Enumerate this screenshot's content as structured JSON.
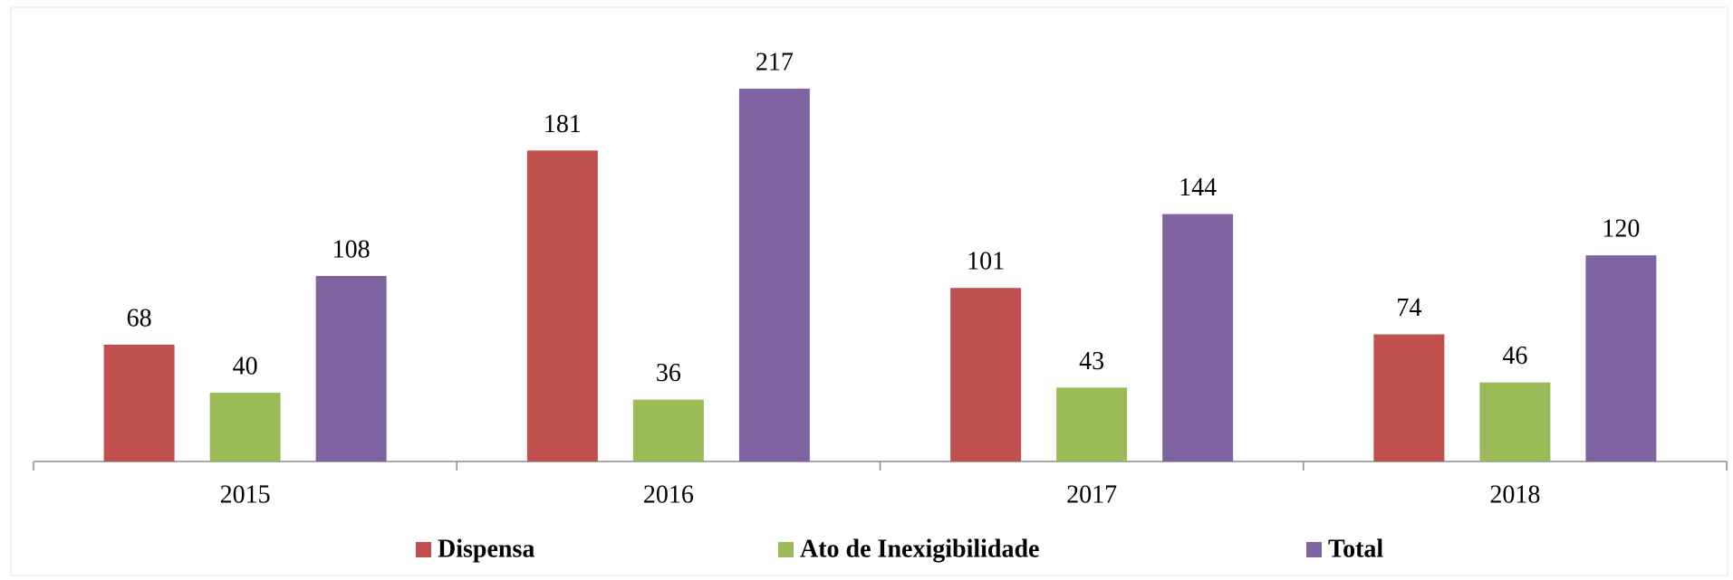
{
  "chart_data": {
    "type": "bar",
    "categories": [
      "2015",
      "2016",
      "2017",
      "2018"
    ],
    "series": [
      {
        "name": "Dispensa",
        "color": "#c0504d",
        "values": [
          68,
          181,
          101,
          74
        ]
      },
      {
        "name": "Ato de Inexigibilidade",
        "color": "#9bbb59",
        "values": [
          40,
          36,
          43,
          46
        ]
      },
      {
        "name": "Total",
        "color": "#8064a2",
        "values": [
          108,
          217,
          144,
          120
        ]
      }
    ]
  }
}
